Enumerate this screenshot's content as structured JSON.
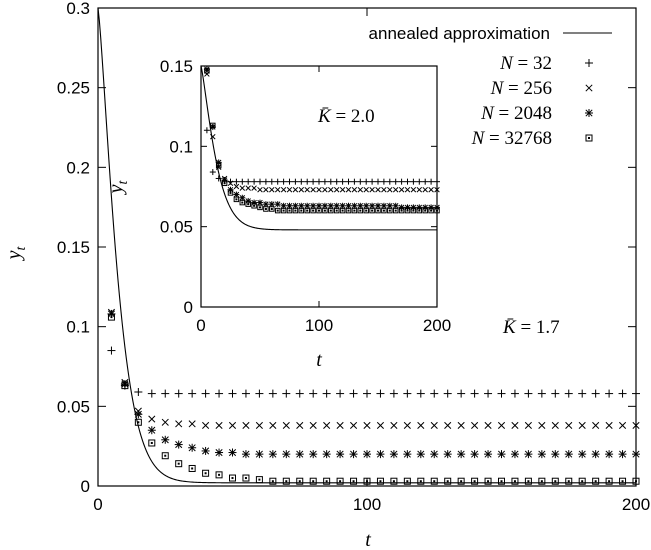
{
  "chart_data": [
    {
      "type": "scatter",
      "xlabel": "t",
      "ylabel": "y_t",
      "xlim": [
        0,
        200
      ],
      "ylim": [
        0,
        0.3
      ],
      "xticks": [
        0,
        100,
        200
      ],
      "xtick_labels": [
        "0",
        "100",
        "200"
      ],
      "yticks": [
        0,
        0.05,
        0.1,
        0.15,
        0.2,
        0.25,
        0.3
      ],
      "ytick_labels": [
        "0",
        "0.05",
        "0.1",
        "0.15",
        "0.2",
        "0.25",
        "0.3"
      ],
      "grid": false,
      "legend_position": "top-right",
      "annotation": {
        "text_var": "K̄",
        "text_eq": " = 1.7"
      },
      "curve": {
        "name": "annealed approximation",
        "y0": 0.3,
        "y_inf": 0.002,
        "decay_a": 0.05,
        "decay_b": 0.71
      },
      "series": [
        {
          "name": "N = 32",
          "marker": "plus",
          "x": [
            5,
            10,
            15,
            20,
            25,
            30,
            35,
            40,
            45,
            50,
            55,
            60,
            65,
            70,
            75,
            80,
            85,
            90,
            95,
            100,
            105,
            110,
            115,
            120,
            125,
            130,
            135,
            140,
            145,
            150,
            155,
            160,
            165,
            170,
            175,
            180,
            185,
            190,
            195,
            200
          ],
          "y": [
            0.085,
            0.063,
            0.059,
            0.058,
            0.058,
            0.058,
            0.058,
            0.058,
            0.058,
            0.058,
            0.058,
            0.058,
            0.058,
            0.058,
            0.058,
            0.058,
            0.058,
            0.058,
            0.058,
            0.058,
            0.058,
            0.058,
            0.058,
            0.058,
            0.058,
            0.058,
            0.058,
            0.058,
            0.058,
            0.058,
            0.058,
            0.058,
            0.058,
            0.058,
            0.058,
            0.058,
            0.058,
            0.058,
            0.058,
            0.058
          ]
        },
        {
          "name": "N = 256",
          "marker": "cross",
          "x": [
            5,
            10,
            15,
            20,
            25,
            30,
            35,
            40,
            45,
            50,
            55,
            60,
            65,
            70,
            75,
            80,
            85,
            90,
            95,
            100,
            105,
            110,
            115,
            120,
            125,
            130,
            135,
            140,
            145,
            150,
            155,
            160,
            165,
            170,
            175,
            180,
            185,
            190,
            195,
            200
          ],
          "y": [
            0.109,
            0.065,
            0.047,
            0.042,
            0.04,
            0.039,
            0.039,
            0.038,
            0.038,
            0.038,
            0.038,
            0.038,
            0.038,
            0.038,
            0.038,
            0.038,
            0.038,
            0.038,
            0.038,
            0.038,
            0.038,
            0.038,
            0.038,
            0.038,
            0.038,
            0.038,
            0.038,
            0.038,
            0.038,
            0.038,
            0.038,
            0.038,
            0.038,
            0.038,
            0.038,
            0.038,
            0.038,
            0.038,
            0.038,
            0.038
          ]
        },
        {
          "name": "N = 2048",
          "marker": "asterisk",
          "x": [
            5,
            10,
            15,
            20,
            25,
            30,
            35,
            40,
            45,
            50,
            55,
            60,
            65,
            70,
            75,
            80,
            85,
            90,
            95,
            100,
            105,
            110,
            115,
            120,
            125,
            130,
            135,
            140,
            145,
            150,
            155,
            160,
            165,
            170,
            175,
            180,
            185,
            190,
            195,
            200
          ],
          "y": [
            0.108,
            0.064,
            0.045,
            0.035,
            0.029,
            0.026,
            0.024,
            0.022,
            0.021,
            0.021,
            0.02,
            0.02,
            0.02,
            0.02,
            0.02,
            0.02,
            0.02,
            0.02,
            0.02,
            0.02,
            0.02,
            0.02,
            0.02,
            0.02,
            0.02,
            0.02,
            0.02,
            0.02,
            0.02,
            0.02,
            0.02,
            0.02,
            0.02,
            0.02,
            0.02,
            0.02,
            0.02,
            0.02,
            0.02,
            0.02
          ]
        },
        {
          "name": "N = 32768",
          "marker": "square",
          "x": [
            5,
            10,
            15,
            20,
            25,
            30,
            35,
            40,
            45,
            50,
            55,
            60,
            65,
            70,
            75,
            80,
            85,
            90,
            95,
            100,
            105,
            110,
            115,
            120,
            125,
            130,
            135,
            140,
            145,
            150,
            155,
            160,
            165,
            170,
            175,
            180,
            185,
            190,
            195,
            200
          ],
          "y": [
            0.106,
            0.063,
            0.04,
            0.027,
            0.019,
            0.014,
            0.011,
            0.008,
            0.007,
            0.005,
            0.005,
            0.004,
            0.003,
            0.003,
            0.003,
            0.003,
            0.003,
            0.003,
            0.003,
            0.003,
            0.003,
            0.003,
            0.003,
            0.003,
            0.003,
            0.003,
            0.003,
            0.003,
            0.003,
            0.003,
            0.003,
            0.003,
            0.003,
            0.003,
            0.003,
            0.003,
            0.003,
            0.003,
            0.003,
            0.003
          ]
        }
      ]
    },
    {
      "type": "scatter",
      "xlabel": "t",
      "ylabel": "y_t",
      "xlim": [
        0,
        200
      ],
      "ylim": [
        0,
        0.15
      ],
      "xticks": [
        0,
        100,
        200
      ],
      "xtick_labels": [
        "0",
        "100",
        "200"
      ],
      "yticks": [
        0,
        0.05,
        0.1,
        0.15
      ],
      "ytick_labels": [
        "0",
        "0.05",
        "0.1",
        "0.15"
      ],
      "grid": false,
      "annotation": {
        "text_var": "K̄",
        "text_eq": " = 2.0"
      },
      "curve": {
        "name": "annealed approximation",
        "y0": 0.15,
        "y_inf": 0.048,
        "decay_a": 0.022,
        "decay_b": 0.75
      },
      "series": [
        {
          "name": "N = 32",
          "marker": "plus",
          "x": [
            5,
            10,
            15,
            20,
            25,
            30,
            35,
            40,
            45,
            50,
            55,
            60,
            65,
            70,
            75,
            80,
            85,
            90,
            95,
            100,
            105,
            110,
            115,
            120,
            125,
            130,
            135,
            140,
            145,
            150,
            155,
            160,
            165,
            170,
            175,
            180,
            185,
            190,
            195,
            200
          ],
          "y": [
            0.11,
            0.084,
            0.08,
            0.079,
            0.078,
            0.078,
            0.078,
            0.078,
            0.078,
            0.078,
            0.078,
            0.078,
            0.078,
            0.078,
            0.078,
            0.078,
            0.078,
            0.078,
            0.078,
            0.078,
            0.078,
            0.078,
            0.078,
            0.078,
            0.078,
            0.078,
            0.078,
            0.078,
            0.078,
            0.078,
            0.078,
            0.078,
            0.078,
            0.078,
            0.078,
            0.078,
            0.078,
            0.078,
            0.078,
            0.078
          ]
        },
        {
          "name": "N = 256",
          "marker": "cross",
          "x": [
            5,
            10,
            15,
            20,
            25,
            30,
            35,
            40,
            45,
            50,
            55,
            60,
            65,
            70,
            75,
            80,
            85,
            90,
            95,
            100,
            105,
            110,
            115,
            120,
            125,
            130,
            135,
            140,
            145,
            150,
            155,
            160,
            165,
            170,
            175,
            180,
            185,
            190,
            195,
            200
          ],
          "y": [
            0.145,
            0.106,
            0.087,
            0.08,
            0.077,
            0.075,
            0.074,
            0.074,
            0.074,
            0.073,
            0.073,
            0.073,
            0.073,
            0.073,
            0.073,
            0.073,
            0.073,
            0.073,
            0.073,
            0.073,
            0.073,
            0.073,
            0.073,
            0.073,
            0.073,
            0.073,
            0.073,
            0.073,
            0.073,
            0.073,
            0.073,
            0.073,
            0.073,
            0.073,
            0.073,
            0.073,
            0.073,
            0.073,
            0.073,
            0.073
          ]
        },
        {
          "name": "N = 2048",
          "marker": "asterisk",
          "x": [
            5,
            10,
            15,
            20,
            25,
            30,
            35,
            40,
            45,
            50,
            55,
            60,
            65,
            70,
            75,
            80,
            85,
            90,
            95,
            100,
            105,
            110,
            115,
            120,
            125,
            130,
            135,
            140,
            145,
            150,
            155,
            160,
            165,
            170,
            175,
            180,
            185,
            190,
            195,
            200
          ],
          "y": [
            0.148,
            0.112,
            0.09,
            0.079,
            0.073,
            0.07,
            0.068,
            0.066,
            0.065,
            0.065,
            0.064,
            0.064,
            0.064,
            0.063,
            0.063,
            0.063,
            0.063,
            0.063,
            0.063,
            0.063,
            0.063,
            0.063,
            0.063,
            0.063,
            0.063,
            0.063,
            0.063,
            0.063,
            0.063,
            0.063,
            0.063,
            0.063,
            0.063,
            0.062,
            0.062,
            0.062,
            0.062,
            0.062,
            0.062,
            0.062
          ]
        },
        {
          "name": "N = 32768",
          "marker": "square",
          "x": [
            5,
            10,
            15,
            20,
            25,
            30,
            35,
            40,
            45,
            50,
            55,
            60,
            65,
            70,
            75,
            80,
            85,
            90,
            95,
            100,
            105,
            110,
            115,
            120,
            125,
            130,
            135,
            140,
            145,
            150,
            155,
            160,
            165,
            170,
            175,
            180,
            185,
            190,
            195,
            200
          ],
          "y": [
            0.147,
            0.113,
            0.088,
            0.077,
            0.071,
            0.067,
            0.065,
            0.064,
            0.063,
            0.062,
            0.061,
            0.061,
            0.06,
            0.06,
            0.06,
            0.06,
            0.06,
            0.06,
            0.06,
            0.06,
            0.06,
            0.06,
            0.06,
            0.06,
            0.06,
            0.06,
            0.06,
            0.06,
            0.06,
            0.06,
            0.06,
            0.06,
            0.06,
            0.06,
            0.06,
            0.06,
            0.06,
            0.06,
            0.06,
            0.06
          ]
        }
      ]
    }
  ],
  "legend": {
    "curve_label": "annealed approximation",
    "items": [
      {
        "marker": "plus",
        "var": "N",
        "eq": " = 32"
      },
      {
        "marker": "cross",
        "var": "N",
        "eq": " = 256"
      },
      {
        "marker": "asterisk",
        "var": "N",
        "eq": " = 2048"
      },
      {
        "marker": "square",
        "var": "N",
        "eq": " = 32768"
      }
    ]
  }
}
